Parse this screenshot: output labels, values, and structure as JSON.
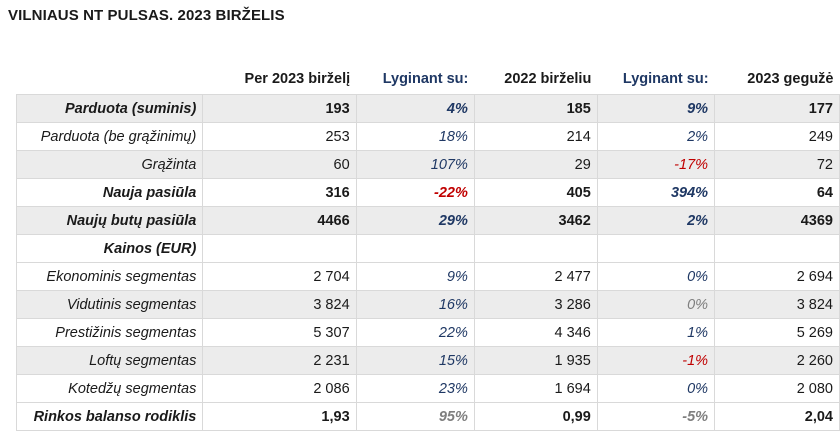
{
  "title": "VILNIAUS NT PULSAS. 2023 BIRŽELIS",
  "headers": [
    "",
    "Per 2023 birželį",
    "Lyginant su:",
    "2022 birželiu",
    "Lyginant su:",
    "2023 gegužė"
  ],
  "rows": [
    {
      "label": "Parduota (suminis)",
      "cur": "193",
      "cmp1": "4%",
      "prev_year": "185",
      "cmp2": "9%",
      "prev_month": "177",
      "bold": true,
      "shade": true,
      "c1": "pos",
      "c2": "pos"
    },
    {
      "label": "Parduota (be grąžinimų)",
      "cur": "253",
      "cmp1": "18%",
      "prev_year": "214",
      "cmp2": "2%",
      "prev_month": "249",
      "bold": false,
      "shade": false,
      "c1": "pos",
      "c2": "pos"
    },
    {
      "label": "Grąžinta",
      "cur": "60",
      "cmp1": "107%",
      "prev_year": "29",
      "cmp2": "-17%",
      "prev_month": "72",
      "bold": false,
      "shade": true,
      "c1": "pos",
      "c2": "neg"
    },
    {
      "label": "Nauja pasiūla",
      "cur": "316",
      "cmp1": "-22%",
      "prev_year": "405",
      "cmp2": "394%",
      "prev_month": "64",
      "bold": true,
      "shade": false,
      "c1": "neg",
      "c2": "pos"
    },
    {
      "label": "Naujų butų pasiūla",
      "cur": "4466",
      "cmp1": "29%",
      "prev_year": "3462",
      "cmp2": "2%",
      "prev_month": "4369",
      "bold": true,
      "shade": true,
      "c1": "pos",
      "c2": "pos"
    },
    {
      "label": "Kainos (EUR)",
      "cur": "",
      "cmp1": "",
      "prev_year": "",
      "cmp2": "",
      "prev_month": "",
      "bold": true,
      "shade": false,
      "c1": "pos",
      "c2": "pos"
    },
    {
      "label": "Ekonominis segmentas",
      "cur": "2 704",
      "cmp1": "9%",
      "prev_year": "2 477",
      "cmp2": "0%",
      "prev_month": "2 694",
      "bold": false,
      "shade": false,
      "c1": "pos",
      "c2": "pos"
    },
    {
      "label": "Vidutinis segmentas",
      "cur": "3 824",
      "cmp1": "16%",
      "prev_year": "3 286",
      "cmp2": "0%",
      "prev_month": "3 824",
      "bold": false,
      "shade": true,
      "c1": "pos",
      "c2": "neu"
    },
    {
      "label": "Prestižinis segmentas",
      "cur": "5 307",
      "cmp1": "22%",
      "prev_year": "4 346",
      "cmp2": "1%",
      "prev_month": "5 269",
      "bold": false,
      "shade": false,
      "c1": "pos",
      "c2": "pos"
    },
    {
      "label": "Loftų segmentas",
      "cur": "2 231",
      "cmp1": "15%",
      "prev_year": "1 935",
      "cmp2": "-1%",
      "prev_month": "2 260",
      "bold": false,
      "shade": true,
      "c1": "pos",
      "c2": "neg"
    },
    {
      "label": "Kotedžų segmentas",
      "cur": "2 086",
      "cmp1": "23%",
      "prev_year": "1 694",
      "cmp2": "0%",
      "prev_month": "2 080",
      "bold": false,
      "shade": false,
      "c1": "pos",
      "c2": "pos"
    },
    {
      "label": "Rinkos balanso rodiklis",
      "cur": "1,93",
      "cmp1": "95%",
      "prev_year": "0,99",
      "cmp2": "-5%",
      "prev_month": "2,04",
      "bold": true,
      "shade": false,
      "c1": "neu",
      "c2": "neu"
    }
  ],
  "colors": {
    "positive": "#1f3864",
    "negative": "#c00000",
    "neutral": "#7f7f7f",
    "shade": "#ececec"
  }
}
